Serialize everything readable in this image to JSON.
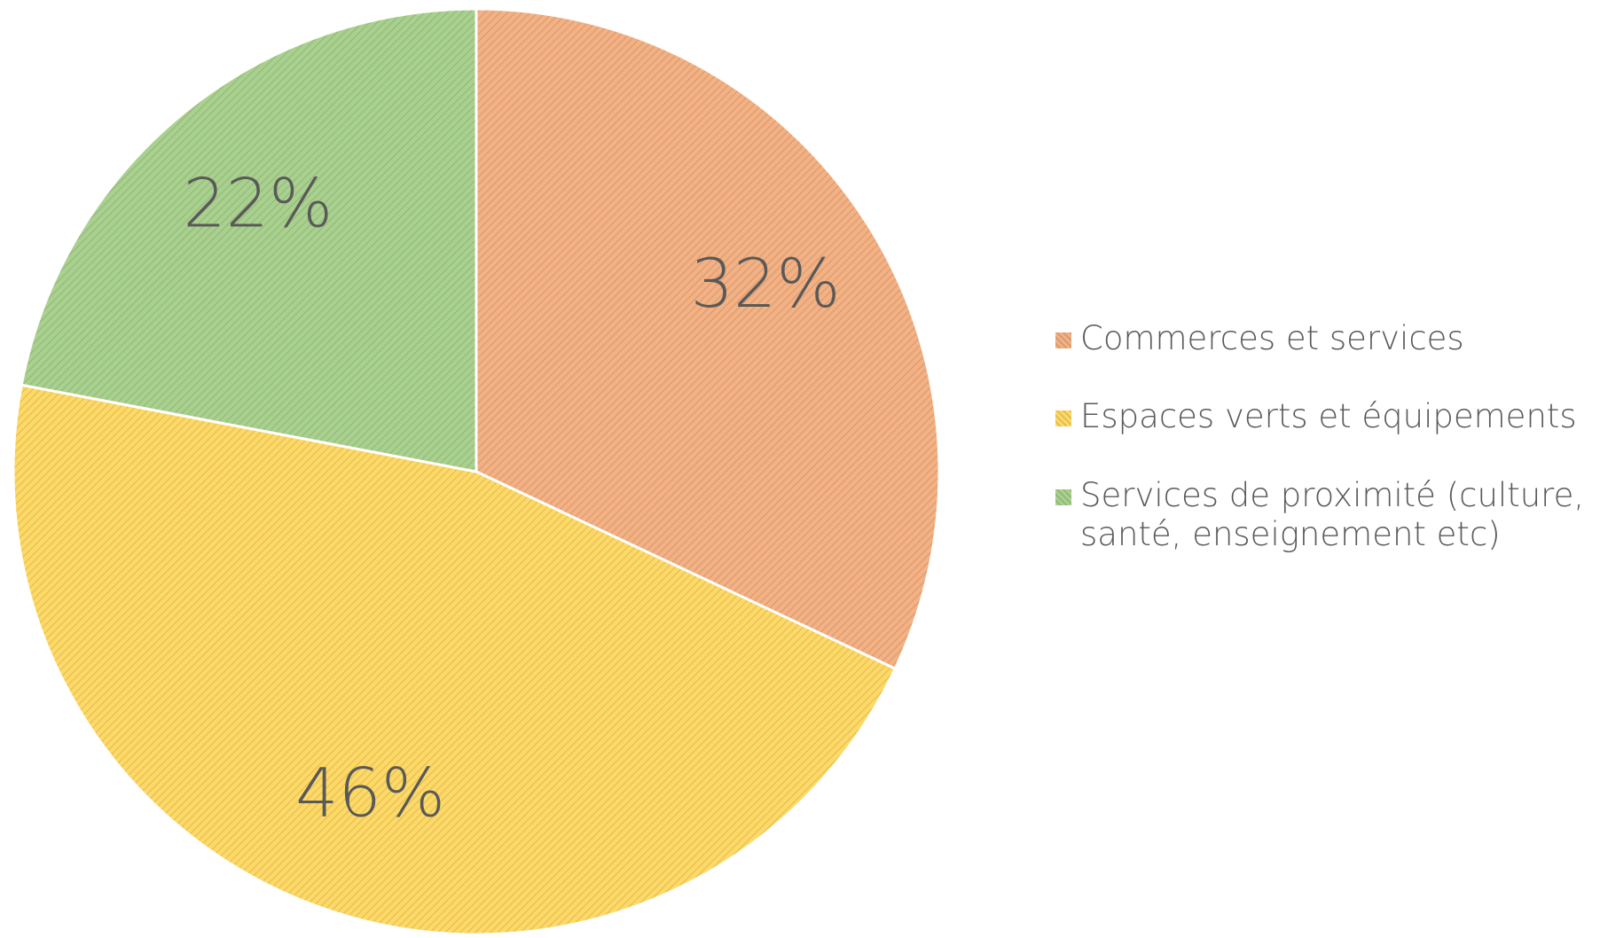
{
  "chart_data": {
    "type": "pie",
    "categories": [
      "Commerces et services",
      "Espaces verts et équipements",
      "Services de proximité (culture, santé, enseignement etc)"
    ],
    "values": [
      32,
      46,
      22
    ],
    "value_labels": [
      "32%",
      "46%",
      "22%"
    ],
    "colors": [
      "#f4b183",
      "#ffd966",
      "#a9d18e"
    ],
    "legend": "right"
  }
}
